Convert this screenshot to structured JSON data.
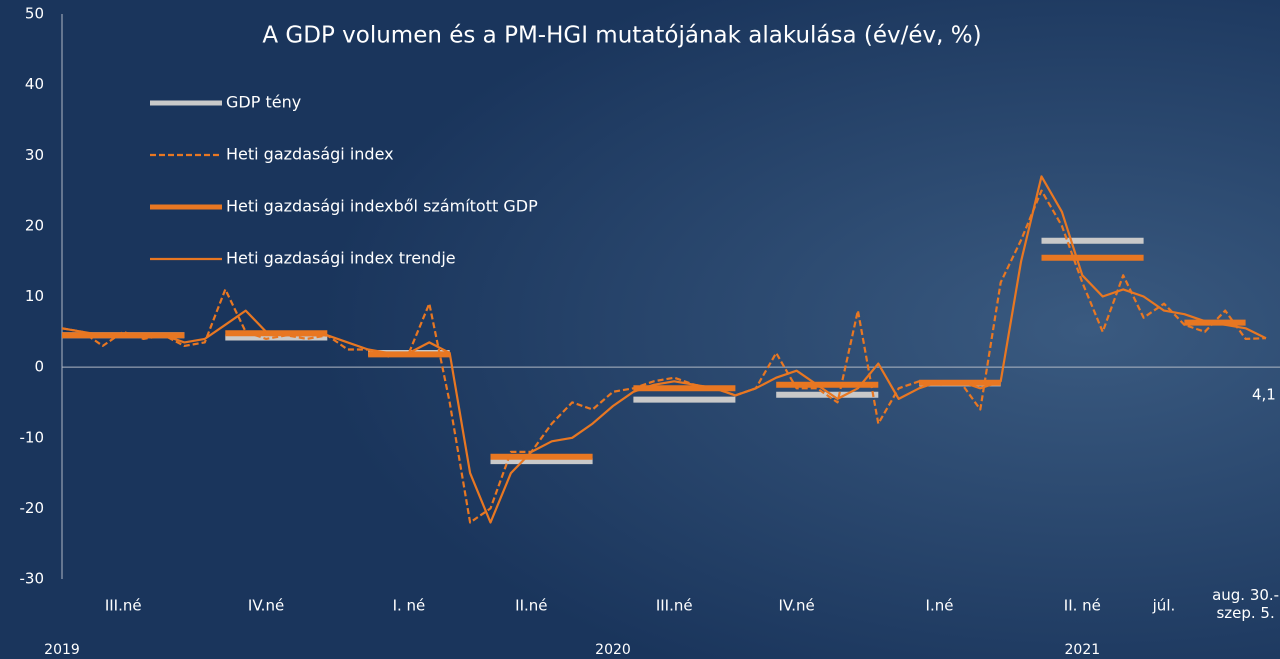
{
  "chart_data": {
    "type": "line",
    "title": "A GDP volumen és a PM-HGI mutatójának alakulása (év/év, %)",
    "categories": [
      null,
      null,
      null,
      "III.né",
      null,
      null,
      null,
      null,
      null,
      null,
      "IV.né",
      null,
      null,
      null,
      null,
      null,
      null,
      "I. né",
      null,
      null,
      null,
      null,
      null,
      "II.né",
      null,
      null,
      null,
      null,
      null,
      null,
      "III.né",
      null,
      null,
      null,
      null,
      null,
      "IV.né",
      null,
      null,
      null,
      null,
      null,
      null,
      "I.né",
      null,
      null,
      null,
      null,
      null,
      null,
      "II. né",
      null,
      null,
      null,
      "júl.",
      null,
      null,
      null,
      "aug. 30.-\nszep. 5.",
      null
    ],
    "year_categories": [
      "2019",
      null,
      null,
      null,
      null,
      null,
      null,
      null,
      null,
      null,
      null,
      null,
      null,
      null,
      null,
      null,
      null,
      null,
      null,
      null,
      null,
      null,
      null,
      null,
      null,
      null,
      null,
      "2020",
      null,
      null,
      null,
      null,
      null,
      null,
      null,
      null,
      null,
      null,
      null,
      null,
      null,
      null,
      null,
      null,
      null,
      null,
      null,
      null,
      null,
      null,
      "2021",
      null,
      null,
      null,
      null,
      null,
      null,
      null,
      null,
      null
    ],
    "series": [
      {
        "name": "GDP tény",
        "color": "#c9c9c9",
        "line_style": "solid",
        "thick": true,
        "values": [
          4.5,
          4.5,
          4.5,
          4.5,
          4.5,
          4.5,
          4.5,
          null,
          4.2,
          4.2,
          4.2,
          4.2,
          4.2,
          4.2,
          null,
          2.0,
          2.0,
          2.0,
          2.0,
          2.0,
          null,
          -13.3,
          -13.3,
          -13.3,
          -13.3,
          -13.3,
          -13.3,
          null,
          -4.6,
          -4.6,
          -4.6,
          -4.6,
          -4.6,
          -4.6,
          null,
          -3.9,
          -3.9,
          -3.9,
          -3.9,
          -3.9,
          -3.9,
          null,
          -2.3,
          -2.3,
          -2.3,
          -2.3,
          -2.3,
          null,
          17.9,
          17.9,
          17.9,
          17.9,
          17.9,
          17.9,
          null,
          null,
          null,
          null,
          null,
          null
        ]
      },
      {
        "name": "Heti gazdasági index",
        "color": "#e87722",
        "line_style": "dashed",
        "thick": false,
        "values": [
          5.5,
          5,
          3,
          5,
          4,
          4.5,
          3,
          3.5,
          11,
          5,
          4,
          4.5,
          4,
          4.5,
          2.5,
          2.5,
          1.5,
          2,
          9,
          -5,
          -22,
          -20,
          -12,
          -12,
          -8,
          -5,
          -6,
          -3.5,
          -3,
          -2,
          -1.5,
          -2.5,
          -3,
          -4,
          -3,
          2,
          -3,
          -3,
          -5,
          8,
          -8,
          -3,
          -2,
          -2.5,
          -2,
          -6,
          12,
          18,
          25,
          20,
          12,
          5,
          13,
          7,
          9,
          6,
          5,
          8,
          4,
          4.1
        ]
      },
      {
        "name": "Heti gazdasági indexből számított GDP",
        "color": "#e87722",
        "line_style": "solid",
        "thick": true,
        "values": [
          4.5,
          4.5,
          4.5,
          4.5,
          4.5,
          4.5,
          4.5,
          null,
          4.8,
          4.8,
          4.8,
          4.8,
          4.8,
          4.8,
          null,
          1.8,
          1.8,
          1.8,
          1.8,
          1.8,
          null,
          -12.7,
          -12.7,
          -12.7,
          -12.7,
          -12.7,
          -12.7,
          null,
          -3.0,
          -3.0,
          -3.0,
          -3.0,
          -3.0,
          -3.0,
          null,
          -2.5,
          -2.5,
          -2.5,
          -2.5,
          -2.5,
          -2.5,
          null,
          -2.2,
          -2.2,
          -2.2,
          -2.2,
          -2.2,
          null,
          15.5,
          15.5,
          15.5,
          15.5,
          15.5,
          15.5,
          null,
          6.3,
          6.3,
          6.3,
          6.3,
          null
        ]
      },
      {
        "name": "Heti gazdasági index trendje",
        "color": "#e87722",
        "line_style": "solid",
        "thick": false,
        "values": [
          5.5,
          5,
          4.5,
          4.5,
          4.5,
          4.5,
          3.5,
          4,
          6,
          8,
          5,
          4.5,
          4.5,
          4.5,
          3.5,
          2.5,
          2,
          2,
          3.5,
          2,
          -15,
          -22,
          -15,
          -12,
          -10.5,
          -10,
          -8,
          -5.5,
          -3.5,
          -2.5,
          -2,
          -2.5,
          -3,
          -4,
          -3,
          -1.5,
          -0.5,
          -2.5,
          -4.5,
          -3,
          0.5,
          -4.5,
          -3,
          -2,
          -2,
          -3,
          -2,
          15,
          27,
          22,
          13,
          10,
          11,
          10,
          8,
          7.5,
          6.5,
          6,
          5.5,
          4.1
        ]
      }
    ],
    "annotation": "4,1",
    "ylim": [
      -30,
      50
    ],
    "yticks": [
      -30,
      -20,
      -10,
      0,
      10,
      20,
      30,
      40,
      50
    ],
    "grid": false
  }
}
